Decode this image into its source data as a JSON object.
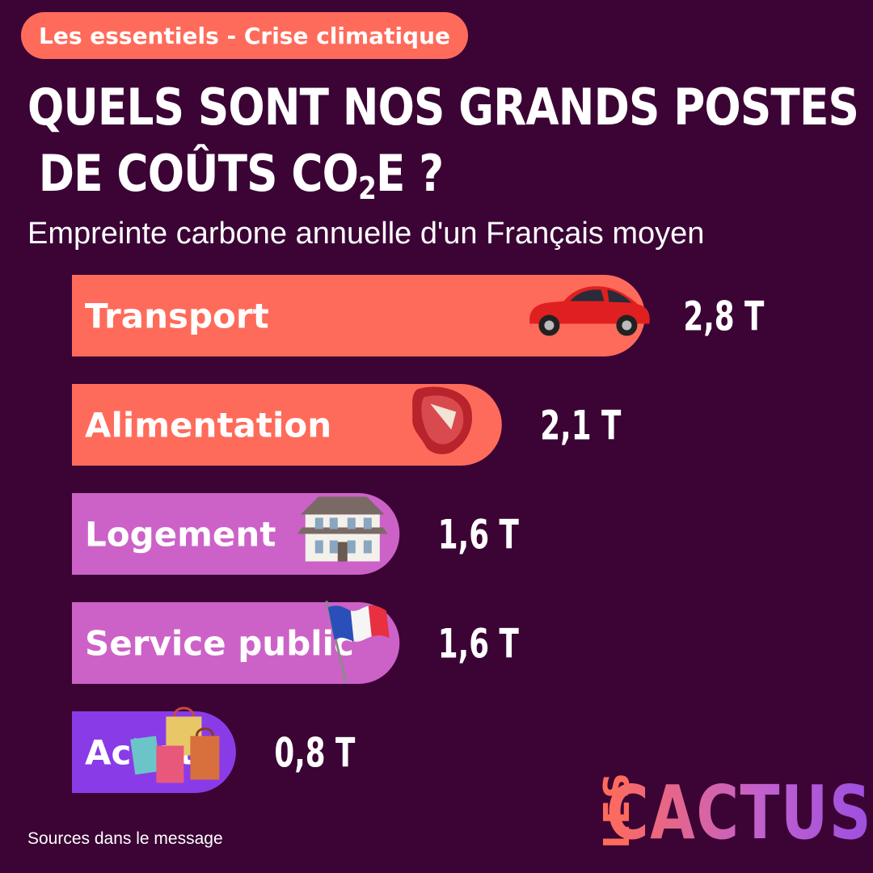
{
  "tag": "Les essentiels - Crise climatique",
  "title": {
    "line1": "QUELS SONT NOS GRANDS POSTES",
    "line2_before": "DE COÛTS CO",
    "line2_sub": "2",
    "line2_after": "E ?"
  },
  "subtitle": "Empreinte carbone annuelle d'un Français moyen",
  "source": "Sources dans le message",
  "logo": {
    "small": "LES",
    "big": "CACTUS"
  },
  "colors": {
    "background": "#3b0435",
    "coral": "#ff6b5b",
    "pink": "#cc62c8",
    "violet": "#8a3be8"
  },
  "chart_data": {
    "type": "bar",
    "orientation": "horizontal",
    "unit": "T",
    "categories": [
      "Transport",
      "Alimentation",
      "Logement",
      "Service public",
      "Achats"
    ],
    "values": [
      2.8,
      2.1,
      1.6,
      1.6,
      0.8
    ],
    "labels": [
      "2,8 T",
      "2,1 T",
      "1,6 T",
      "1,6 T",
      "0,8 T"
    ],
    "colors": [
      "#ff6b5b",
      "#ff6b5b",
      "#cc62c8",
      "#cc62c8",
      "#8a3be8"
    ],
    "icons": [
      "car-icon",
      "steak-icon",
      "house-icon",
      "french-flag-icon",
      "shopping-bags-icon"
    ]
  }
}
